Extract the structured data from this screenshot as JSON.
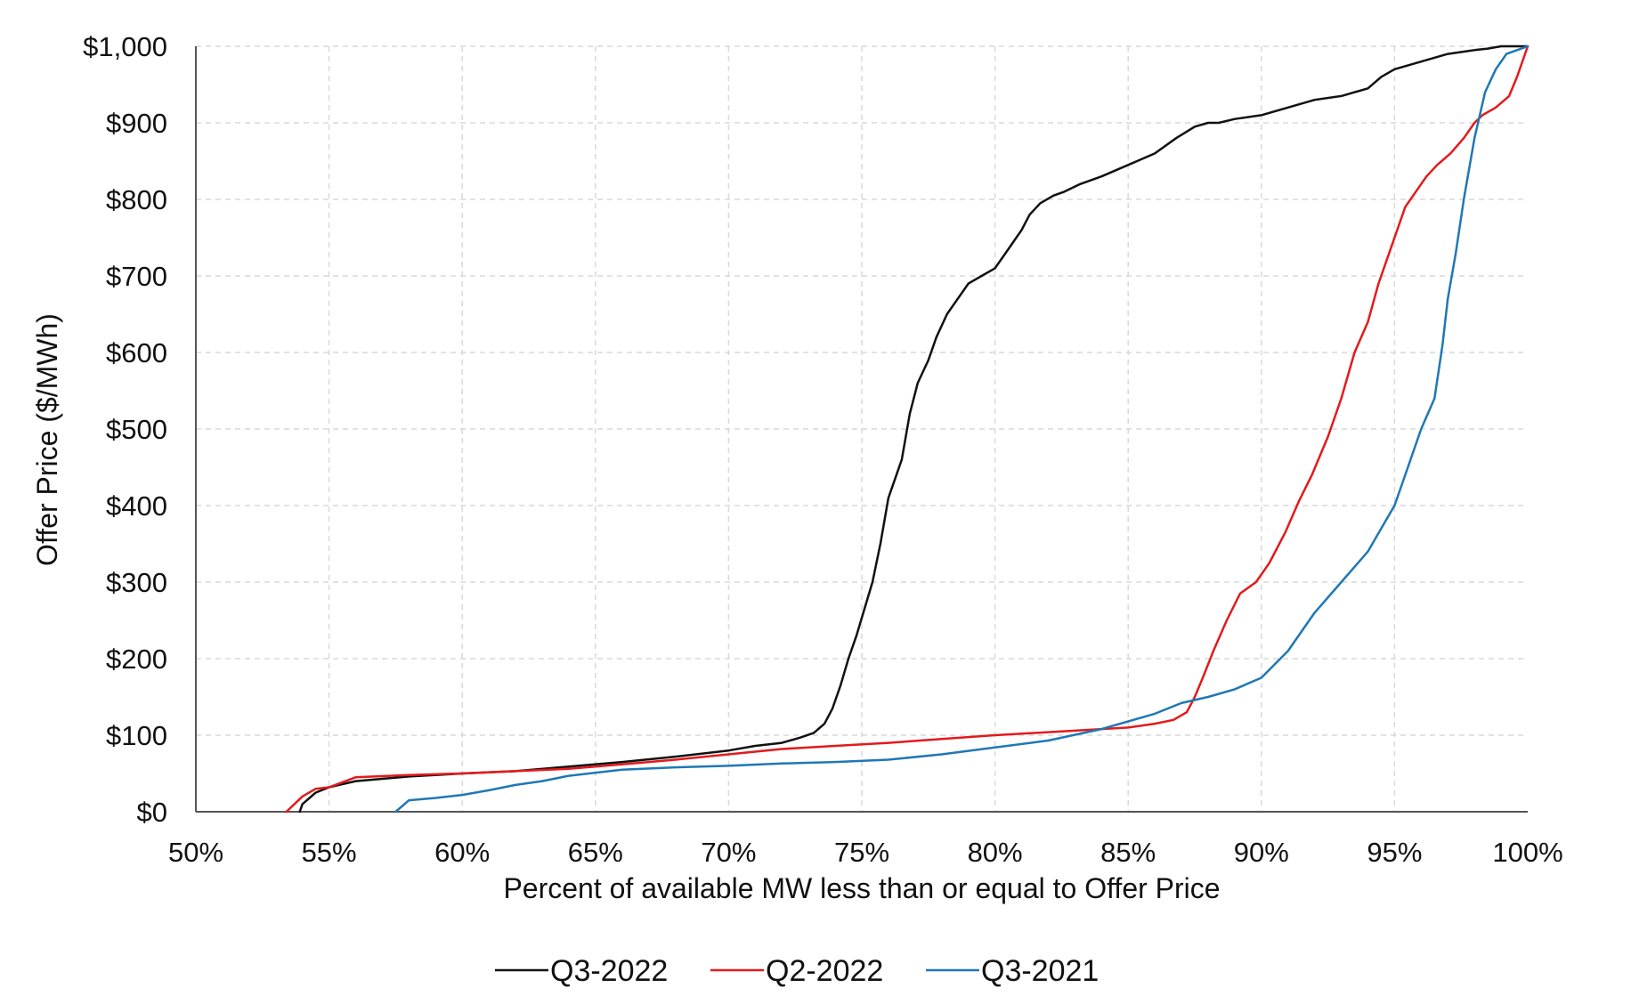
{
  "chart_data": {
    "type": "line",
    "title": "",
    "xlabel": "Percent of available MW less than or equal to Offer Price",
    "ylabel": "Offer Price  ($/MWh)",
    "xlim": [
      50,
      100
    ],
    "ylim": [
      0,
      1000
    ],
    "xticks": [
      50,
      55,
      60,
      65,
      70,
      75,
      80,
      85,
      90,
      95,
      100
    ],
    "xtick_labels": [
      "50%",
      "55%",
      "60%",
      "65%",
      "70%",
      "75%",
      "80%",
      "85%",
      "90%",
      "95%",
      "100%"
    ],
    "yticks": [
      0,
      100,
      200,
      300,
      400,
      500,
      600,
      700,
      800,
      900,
      1000
    ],
    "ytick_labels": [
      "$0",
      "$100",
      "$200",
      "$300",
      "$400",
      "$500",
      "$600",
      "$700",
      "$800",
      "$900",
      "$1,000"
    ],
    "grid": true,
    "legend_position": "bottom",
    "series": [
      {
        "name": "Q3-2022",
        "color": "#111111",
        "x": [
          53.9,
          54.0,
          54.5,
          55.0,
          56.0,
          58.0,
          60.0,
          62.0,
          64.0,
          66.0,
          68.0,
          70.0,
          71.0,
          72.0,
          72.7,
          73.2,
          73.6,
          73.9,
          74.2,
          74.5,
          74.8,
          75.1,
          75.4,
          75.7,
          76.0,
          76.2,
          76.5,
          76.8,
          77.1,
          77.5,
          77.8,
          78.2,
          78.6,
          79.0,
          79.5,
          80.0,
          80.6,
          81.0,
          81.3,
          81.7,
          82.2,
          82.6,
          83.2,
          84.0,
          85.0,
          86.0,
          86.8,
          87.5,
          88.0,
          88.4,
          89.0,
          90.0,
          91.0,
          92.0,
          93.0,
          94.0,
          94.5,
          95.0,
          96.0,
          97.0,
          98.0,
          98.5,
          99.0,
          100.0
        ],
        "y": [
          0,
          10,
          25,
          32,
          40,
          46,
          50,
          53,
          59,
          65,
          72,
          80,
          86,
          90,
          97,
          103,
          115,
          135,
          165,
          200,
          230,
          265,
          300,
          350,
          410,
          430,
          460,
          520,
          560,
          590,
          620,
          650,
          670,
          690,
          700,
          710,
          740,
          760,
          780,
          795,
          805,
          810,
          820,
          830,
          845,
          860,
          880,
          895,
          900,
          900,
          905,
          910,
          920,
          930,
          935,
          945,
          960,
          970,
          980,
          990,
          995,
          997,
          1000,
          1000
        ]
      },
      {
        "name": "Q2-2022",
        "color": "#e31a1c",
        "x": [
          53.4,
          54.0,
          54.5,
          55.0,
          56.0,
          58.0,
          60.0,
          62.0,
          64.0,
          66.0,
          68.0,
          70.0,
          72.0,
          74.0,
          76.0,
          78.0,
          80.0,
          82.0,
          84.0,
          85.0,
          86.0,
          86.7,
          87.2,
          87.5,
          87.8,
          88.2,
          88.7,
          89.2,
          89.8,
          90.3,
          90.9,
          91.4,
          91.9,
          92.5,
          93.0,
          93.5,
          94.0,
          94.4,
          94.8,
          95.1,
          95.4,
          95.8,
          96.2,
          96.6,
          97.1,
          97.6,
          98.0,
          98.3,
          98.8,
          99.3,
          99.6,
          100.0
        ],
        "y": [
          0,
          20,
          30,
          32,
          45,
          48,
          50,
          53,
          56,
          62,
          68,
          75,
          82,
          86,
          90,
          95,
          100,
          104,
          108,
          110,
          115,
          120,
          130,
          150,
          175,
          210,
          250,
          285,
          300,
          325,
          365,
          405,
          440,
          490,
          540,
          600,
          640,
          690,
          730,
          760,
          790,
          810,
          830,
          845,
          860,
          880,
          900,
          910,
          920,
          935,
          960,
          1000
        ]
      },
      {
        "name": "Q3-2021",
        "color": "#1f78b4",
        "x": [
          57.5,
          58.0,
          59.0,
          60.0,
          61.0,
          62.0,
          63.0,
          64.0,
          66.0,
          68.0,
          70.0,
          72.0,
          74.0,
          76.0,
          78.0,
          80.0,
          82.0,
          84.0,
          85.0,
          86.0,
          87.0,
          88.0,
          89.0,
          90.0,
          91.0,
          92.0,
          93.0,
          94.0,
          94.5,
          95.0,
          95.5,
          96.0,
          96.5,
          96.8,
          97.0,
          97.3,
          97.6,
          98.0,
          98.4,
          98.8,
          99.2,
          99.6,
          100.0
        ],
        "y": [
          0,
          15,
          18,
          22,
          28,
          35,
          40,
          47,
          55,
          58,
          60,
          63,
          65,
          68,
          75,
          84,
          93,
          108,
          118,
          128,
          142,
          150,
          160,
          175,
          210,
          260,
          300,
          340,
          370,
          400,
          450,
          500,
          540,
          610,
          670,
          730,
          800,
          880,
          940,
          970,
          990,
          995,
          1000
        ]
      }
    ]
  }
}
